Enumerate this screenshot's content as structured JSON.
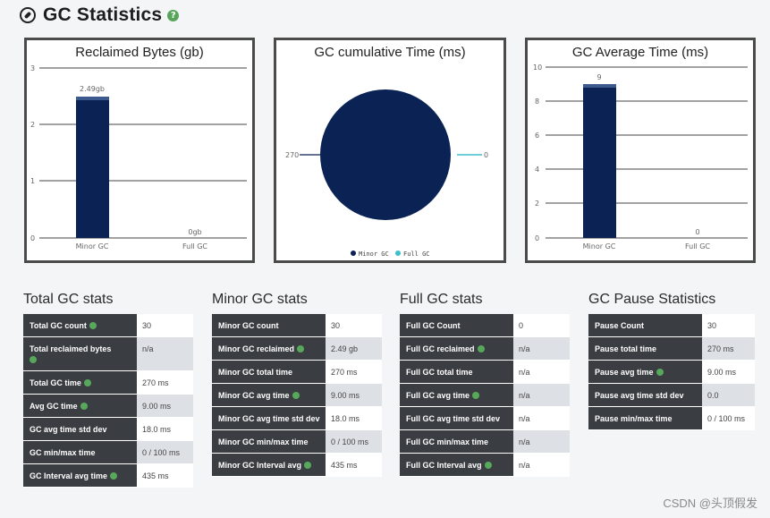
{
  "header": {
    "title": "GC Statistics",
    "help_icon": "?"
  },
  "charts": {
    "reclaimed": {
      "title": "Reclaimed Bytes (gb)",
      "y_ticks": [
        "3",
        "2",
        "1",
        "0"
      ],
      "bar1_label": "2.49gb",
      "bar2_label": "0gb",
      "cat1": "Minor GC",
      "cat2": "Full GC"
    },
    "cumulative": {
      "title": "GC cumulative Time (ms)",
      "left_label": "270",
      "right_label": "0",
      "legend1": "Minor GC",
      "legend2": "Full GC"
    },
    "average": {
      "title": "GC Average Time (ms)",
      "y_ticks": [
        "10",
        "8",
        "6",
        "4",
        "2",
        "0"
      ],
      "bar1_label": "9",
      "bar2_label": "0",
      "cat1": "Minor GC",
      "cat2": "Full GC"
    }
  },
  "chart_data": [
    {
      "type": "bar",
      "title": "Reclaimed Bytes (gb)",
      "categories": [
        "Minor GC",
        "Full GC"
      ],
      "values": [
        2.49,
        0
      ],
      "ylim": [
        0,
        3
      ],
      "grid": true
    },
    {
      "type": "pie",
      "title": "GC cumulative Time (ms)",
      "categories": [
        "Minor GC",
        "Full GC"
      ],
      "values": [
        270,
        0
      ],
      "legend": "bottom"
    },
    {
      "type": "bar",
      "title": "GC Average Time (ms)",
      "categories": [
        "Minor GC",
        "Full GC"
      ],
      "values": [
        9,
        0
      ],
      "ylim": [
        0,
        10
      ],
      "grid": true
    }
  ],
  "colors": {
    "bar": "#0b2255",
    "teal": "#3bbfc9",
    "key_bg": "#3a3d42",
    "help": "#56a55a"
  },
  "total_stats": {
    "title": "Total GC stats",
    "rows": [
      {
        "key": "Total GC count",
        "value": "30"
      },
      {
        "key": "Total reclaimed bytes",
        "value": "n/a"
      },
      {
        "key": "Total GC time",
        "value": "270 ms"
      },
      {
        "key": "Avg GC time",
        "value": "9.00 ms"
      },
      {
        "key": "GC avg time std dev",
        "value": "18.0 ms"
      },
      {
        "key": "GC min/max time",
        "value": "0 / 100 ms"
      },
      {
        "key": "GC Interval avg time",
        "value": "435 ms"
      }
    ]
  },
  "minor_stats": {
    "title": "Minor GC stats",
    "rows": [
      {
        "key": "Minor GC count",
        "value": "30"
      },
      {
        "key": "Minor GC reclaimed",
        "value": "2.49 gb"
      },
      {
        "key": "Minor GC total time",
        "value": "270 ms"
      },
      {
        "key": "Minor GC avg time",
        "value": "9.00 ms"
      },
      {
        "key": "Minor GC avg time std dev",
        "value": "18.0 ms"
      },
      {
        "key": "Minor GC min/max time",
        "value": "0 / 100 ms"
      },
      {
        "key": "Minor GC Interval avg",
        "value": "435 ms"
      }
    ]
  },
  "full_stats": {
    "title": "Full GC stats",
    "rows": [
      {
        "key": "Full GC Count",
        "value": "0"
      },
      {
        "key": "Full GC reclaimed",
        "value": "n/a"
      },
      {
        "key": "Full GC total time",
        "value": "n/a"
      },
      {
        "key": "Full GC avg time",
        "value": "n/a"
      },
      {
        "key": "Full GC avg time std dev",
        "value": "n/a"
      },
      {
        "key": "Full GC min/max time",
        "value": "n/a"
      },
      {
        "key": "Full GC Interval avg",
        "value": "n/a"
      }
    ]
  },
  "pause_stats": {
    "title": "GC Pause Statistics",
    "rows": [
      {
        "key": "Pause Count",
        "value": "30"
      },
      {
        "key": "Pause total time",
        "value": "270 ms"
      },
      {
        "key": "Pause avg time",
        "value": "9.00 ms"
      },
      {
        "key": "Pause avg time std dev",
        "value": "0.0"
      },
      {
        "key": "Pause min/max time",
        "value": "0 / 100 ms"
      }
    ]
  },
  "watermark": "CSDN @头顶假发"
}
